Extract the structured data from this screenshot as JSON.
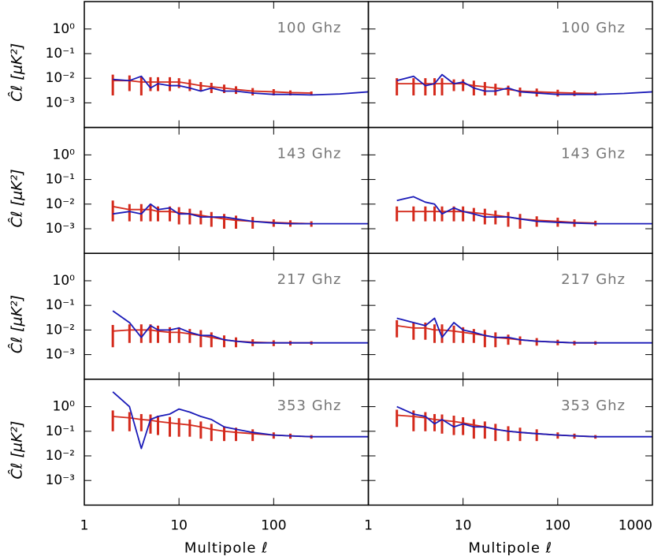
{
  "chart_data": [
    {
      "type": "line",
      "title": "100 Ghz",
      "ylabel": "Ĉℓ [μK²]",
      "x": [
        2,
        3,
        4,
        5,
        6,
        8,
        10,
        13,
        17,
        22,
        30,
        40,
        60,
        100,
        150,
        250,
        500,
        1000
      ],
      "xlim": [
        1,
        1000
      ],
      "ylim": [
        0.0001,
        13
      ],
      "log_x": true,
      "log_y": true,
      "xticks": [
        1,
        10,
        100
      ],
      "yticks": [
        {
          "value": 1,
          "label": "10⁰"
        },
        {
          "value": 0.1,
          "label": "10⁻¹"
        },
        {
          "value": 0.01,
          "label": "10⁻²"
        },
        {
          "value": 0.001,
          "label": "10⁻³"
        }
      ],
      "series": [
        {
          "color": "#d42a1c",
          "values": [
            0.008,
            0.008,
            0.007,
            0.007,
            0.007,
            0.007,
            0.007,
            0.006,
            0.005,
            0.0045,
            0.004,
            0.0035,
            0.003,
            0.0028,
            0.0026,
            0.0025,
            null,
            null
          ],
          "errors": [
            0.006,
            0.005,
            0.005,
            0.004,
            0.004,
            0.004,
            0.003,
            0.003,
            0.002,
            0.002,
            0.0015,
            0.0012,
            0.001,
            0.0008,
            0.0006,
            0.0004,
            null,
            null
          ]
        },
        {
          "color": "#1a1ab8",
          "values": [
            0.009,
            0.008,
            0.012,
            0.004,
            0.006,
            0.005,
            0.005,
            0.004,
            0.003,
            0.004,
            0.003,
            0.003,
            0.0025,
            0.0022,
            0.0022,
            0.0021,
            0.0023,
            0.0028
          ]
        }
      ]
    },
    {
      "type": "line",
      "title": "100 Ghz",
      "x": [
        2,
        3,
        4,
        5,
        6,
        8,
        10,
        13,
        17,
        22,
        30,
        40,
        60,
        100,
        150,
        250,
        500,
        1000
      ],
      "xlim": [
        1,
        1000
      ],
      "ylim": [
        0.0001,
        13
      ],
      "log_x": true,
      "log_y": true,
      "xticks": [
        1,
        10,
        100,
        1000
      ],
      "yticks": [
        1,
        0.1,
        0.01,
        0.001
      ],
      "series": [
        {
          "color": "#d42a1c",
          "values": [
            0.006,
            0.006,
            0.006,
            0.006,
            0.006,
            0.006,
            0.006,
            0.005,
            0.0045,
            0.004,
            0.0035,
            0.003,
            0.0028,
            0.0026,
            0.0025,
            0.0024,
            null,
            null
          ],
          "errors": [
            0.004,
            0.004,
            0.004,
            0.004,
            0.004,
            0.003,
            0.003,
            0.003,
            0.0025,
            0.002,
            0.0015,
            0.0012,
            0.001,
            0.0008,
            0.0006,
            0.0004,
            null,
            null
          ]
        },
        {
          "color": "#1a1ab8",
          "values": [
            0.008,
            0.012,
            0.005,
            0.006,
            0.014,
            0.006,
            0.007,
            0.004,
            0.003,
            0.003,
            0.004,
            0.0028,
            0.0025,
            0.0022,
            0.0022,
            0.0022,
            0.0024,
            0.0028
          ]
        }
      ]
    },
    {
      "type": "line",
      "title": "143 Ghz",
      "ylabel": "Ĉℓ [μK²]",
      "x": [
        2,
        3,
        4,
        5,
        6,
        8,
        10,
        13,
        17,
        22,
        30,
        40,
        60,
        100,
        150,
        250,
        500,
        1000
      ],
      "xlim": [
        1,
        1000
      ],
      "ylim": [
        0.0001,
        13
      ],
      "log_x": true,
      "log_y": true,
      "xticks": [
        1,
        10,
        100
      ],
      "yticks": [
        {
          "value": 1,
          "label": "10⁰"
        },
        {
          "value": 0.1,
          "label": "10⁻¹"
        },
        {
          "value": 0.01,
          "label": "10⁻²"
        },
        {
          "value": 0.001,
          "label": "10⁻³"
        }
      ],
      "series": [
        {
          "color": "#d42a1c",
          "values": [
            0.008,
            0.006,
            0.006,
            0.006,
            0.005,
            0.005,
            0.0045,
            0.004,
            0.0035,
            0.003,
            0.0025,
            0.0022,
            0.002,
            0.0018,
            0.0017,
            0.0016,
            null,
            null
          ],
          "errors": [
            0.006,
            0.004,
            0.004,
            0.004,
            0.003,
            0.003,
            0.003,
            0.0025,
            0.002,
            0.0018,
            0.0015,
            0.0012,
            0.001,
            0.0006,
            0.0005,
            0.0004,
            null,
            null
          ]
        },
        {
          "color": "#1a1ab8",
          "values": [
            0.004,
            0.005,
            0.004,
            0.01,
            0.006,
            0.007,
            0.004,
            0.004,
            0.003,
            0.003,
            0.003,
            0.0025,
            0.002,
            0.0017,
            0.0016,
            0.0016,
            0.0016,
            0.0016
          ]
        }
      ]
    },
    {
      "type": "line",
      "title": "143 Ghz",
      "x": [
        2,
        3,
        4,
        5,
        6,
        8,
        10,
        13,
        17,
        22,
        30,
        40,
        60,
        100,
        150,
        250,
        500,
        1000
      ],
      "xlim": [
        1,
        1000
      ],
      "ylim": [
        0.0001,
        13
      ],
      "log_x": true,
      "log_y": true,
      "xticks": [
        1,
        10,
        100,
        1000
      ],
      "yticks": [
        1,
        0.1,
        0.01,
        0.001
      ],
      "series": [
        {
          "color": "#d42a1c",
          "values": [
            0.005,
            0.005,
            0.005,
            0.005,
            0.005,
            0.005,
            0.005,
            0.0045,
            0.004,
            0.0035,
            0.003,
            0.0025,
            0.0022,
            0.002,
            0.0018,
            0.0017,
            null,
            null
          ],
          "errors": [
            0.003,
            0.003,
            0.003,
            0.003,
            0.003,
            0.003,
            0.003,
            0.0025,
            0.0025,
            0.002,
            0.0018,
            0.0015,
            0.001,
            0.0008,
            0.0006,
            0.0004,
            null,
            null
          ]
        },
        {
          "color": "#1a1ab8",
          "values": [
            0.014,
            0.02,
            0.012,
            0.01,
            0.004,
            0.007,
            0.005,
            0.004,
            0.003,
            0.003,
            0.003,
            0.0025,
            0.002,
            0.0018,
            0.0017,
            0.0016,
            0.0016,
            0.0016
          ]
        }
      ]
    },
    {
      "type": "line",
      "title": "217 Ghz",
      "ylabel": "Ĉℓ [μK²]",
      "x": [
        2,
        3,
        4,
        5,
        6,
        8,
        10,
        13,
        17,
        22,
        30,
        40,
        60,
        100,
        150,
        250,
        500,
        1000
      ],
      "xlim": [
        1,
        1000
      ],
      "ylim": [
        0.0001,
        13
      ],
      "log_x": true,
      "log_y": true,
      "xticks": [
        1,
        10,
        100
      ],
      "yticks": [
        {
          "value": 1,
          "label": "10⁰"
        },
        {
          "value": 0.1,
          "label": "10⁻¹"
        },
        {
          "value": 0.01,
          "label": "10⁻²"
        },
        {
          "value": 0.001,
          "label": "10⁻³"
        }
      ],
      "series": [
        {
          "color": "#d42a1c",
          "values": [
            0.009,
            0.01,
            0.01,
            0.01,
            0.009,
            0.008,
            0.008,
            0.007,
            0.006,
            0.005,
            0.004,
            0.0035,
            0.0032,
            0.003,
            0.003,
            0.003,
            null,
            null
          ],
          "errors": [
            0.007,
            0.007,
            0.007,
            0.007,
            0.006,
            0.005,
            0.005,
            0.004,
            0.004,
            0.003,
            0.002,
            0.0015,
            0.001,
            0.0008,
            0.0006,
            0.0005,
            null,
            null
          ]
        },
        {
          "color": "#1a1ab8",
          "values": [
            0.06,
            0.02,
            0.005,
            0.015,
            0.01,
            0.01,
            0.012,
            0.008,
            0.006,
            0.006,
            0.004,
            0.0035,
            0.003,
            0.003,
            0.003,
            0.003,
            0.003,
            0.003
          ]
        }
      ]
    },
    {
      "type": "line",
      "title": "217 Ghz",
      "x": [
        2,
        3,
        4,
        5,
        6,
        8,
        10,
        13,
        17,
        22,
        30,
        40,
        60,
        100,
        150,
        250,
        500,
        1000
      ],
      "xlim": [
        1,
        1000
      ],
      "ylim": [
        0.0001,
        13
      ],
      "log_x": true,
      "log_y": true,
      "xticks": [
        1,
        10,
        100,
        1000
      ],
      "yticks": [
        1,
        0.1,
        0.01,
        0.001
      ],
      "series": [
        {
          "color": "#d42a1c",
          "values": [
            0.015,
            0.012,
            0.012,
            0.01,
            0.01,
            0.009,
            0.008,
            0.007,
            0.006,
            0.005,
            0.0045,
            0.004,
            0.0035,
            0.0032,
            0.003,
            0.003,
            null,
            null
          ],
          "errors": [
            0.01,
            0.008,
            0.008,
            0.007,
            0.007,
            0.006,
            0.005,
            0.004,
            0.004,
            0.003,
            0.002,
            0.0015,
            0.0012,
            0.0008,
            0.0006,
            0.0005,
            null,
            null
          ]
        },
        {
          "color": "#1a1ab8",
          "values": [
            0.03,
            0.02,
            0.015,
            0.03,
            0.005,
            0.02,
            0.01,
            0.008,
            0.006,
            0.005,
            0.005,
            0.004,
            0.0035,
            0.0032,
            0.003,
            0.003,
            0.003,
            0.003
          ]
        }
      ]
    },
    {
      "type": "line",
      "title": "353 Ghz",
      "ylabel": "Ĉℓ [μK²]",
      "xlabel": "Multipole ℓ",
      "x": [
        2,
        3,
        4,
        5,
        6,
        8,
        10,
        13,
        17,
        22,
        30,
        40,
        60,
        100,
        150,
        250,
        500,
        1000
      ],
      "xlim": [
        1,
        1000
      ],
      "ylim": [
        0.0001,
        13
      ],
      "log_x": true,
      "log_y": true,
      "xticks": [
        1,
        10,
        100
      ],
      "yticks": [
        {
          "value": 1,
          "label": "10⁰"
        },
        {
          "value": 0.1,
          "label": "10⁻¹"
        },
        {
          "value": 0.01,
          "label": "10⁻²"
        },
        {
          "value": 0.001,
          "label": "10⁻³"
        }
      ],
      "series": [
        {
          "color": "#d42a1c",
          "values": [
            0.4,
            0.35,
            0.3,
            0.28,
            0.25,
            0.22,
            0.2,
            0.18,
            0.15,
            0.12,
            0.1,
            0.09,
            0.08,
            0.07,
            0.065,
            0.06,
            null,
            null
          ],
          "errors": [
            0.3,
            0.25,
            0.2,
            0.2,
            0.18,
            0.16,
            0.14,
            0.12,
            0.1,
            0.08,
            0.06,
            0.05,
            0.04,
            0.02,
            0.015,
            0.01,
            null,
            null
          ]
        },
        {
          "color": "#1a1ab8",
          "values": [
            4,
            1,
            0.02,
            0.3,
            0.4,
            0.5,
            0.8,
            0.6,
            0.4,
            0.3,
            0.15,
            0.12,
            0.09,
            0.07,
            0.065,
            0.06,
            0.06,
            0.06
          ]
        }
      ]
    },
    {
      "type": "line",
      "title": "353 Ghz",
      "xlabel": "Multipole ℓ",
      "x": [
        2,
        3,
        4,
        5,
        6,
        8,
        10,
        13,
        17,
        22,
        30,
        40,
        60,
        100,
        150,
        250,
        500,
        1000
      ],
      "xlim": [
        1,
        1000
      ],
      "ylim": [
        0.0001,
        13
      ],
      "log_x": true,
      "log_y": true,
      "xticks": [
        1,
        10,
        100,
        1000
      ],
      "yticks": [
        1,
        0.1,
        0.01,
        0.001
      ],
      "series": [
        {
          "color": "#d42a1c",
          "values": [
            0.45,
            0.4,
            0.35,
            0.3,
            0.28,
            0.25,
            0.22,
            0.18,
            0.15,
            0.12,
            0.1,
            0.09,
            0.08,
            0.07,
            0.065,
            0.06,
            null,
            null
          ],
          "errors": [
            0.3,
            0.3,
            0.25,
            0.2,
            0.2,
            0.18,
            0.15,
            0.13,
            0.1,
            0.08,
            0.06,
            0.05,
            0.04,
            0.02,
            0.015,
            0.01,
            null,
            null
          ]
        },
        {
          "color": "#1a1ab8",
          "values": [
            1,
            0.5,
            0.4,
            0.2,
            0.3,
            0.15,
            0.2,
            0.15,
            0.15,
            0.12,
            0.1,
            0.09,
            0.08,
            0.07,
            0.065,
            0.06,
            0.06,
            0.06
          ]
        }
      ]
    }
  ]
}
